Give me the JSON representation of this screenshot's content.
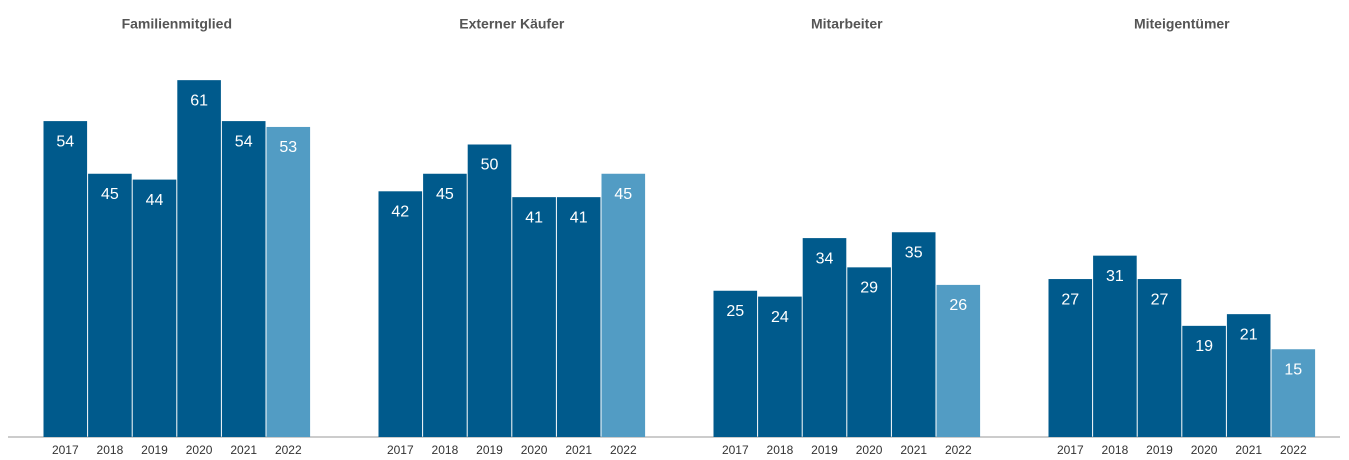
{
  "chart_data": [
    {
      "type": "bar",
      "title": "Familienmitglied",
      "categories": [
        "2017",
        "2018",
        "2019",
        "2020",
        "2021",
        "2022"
      ],
      "values": [
        54,
        45,
        44,
        61,
        54,
        53
      ],
      "colors": [
        "#005a8c",
        "#005a8c",
        "#005a8c",
        "#005a8c",
        "#005a8c",
        "#529cc4"
      ],
      "ylim": [
        0,
        70
      ]
    },
    {
      "type": "bar",
      "title": "Externer Käufer",
      "categories": [
        "2017",
        "2018",
        "2019",
        "2020",
        "2021",
        "2022"
      ],
      "values": [
        42,
        45,
        50,
        41,
        41,
        45
      ],
      "colors": [
        "#005a8c",
        "#005a8c",
        "#005a8c",
        "#005a8c",
        "#005a8c",
        "#529cc4"
      ],
      "ylim": [
        0,
        70
      ]
    },
    {
      "type": "bar",
      "title": "Mitarbeiter",
      "categories": [
        "2017",
        "2018",
        "2019",
        "2020",
        "2021",
        "2022"
      ],
      "values": [
        25,
        24,
        34,
        29,
        35,
        26
      ],
      "colors": [
        "#005a8c",
        "#005a8c",
        "#005a8c",
        "#005a8c",
        "#005a8c",
        "#529cc4"
      ],
      "ylim": [
        0,
        70
      ]
    },
    {
      "type": "bar",
      "title": "Miteigentümer",
      "categories": [
        "2017",
        "2018",
        "2019",
        "2020",
        "2021",
        "2022"
      ],
      "values": [
        27,
        31,
        27,
        19,
        21,
        15
      ],
      "colors": [
        "#005a8c",
        "#005a8c",
        "#005a8c",
        "#005a8c",
        "#005a8c",
        "#529cc4"
      ],
      "ylim": [
        0,
        70
      ]
    }
  ]
}
